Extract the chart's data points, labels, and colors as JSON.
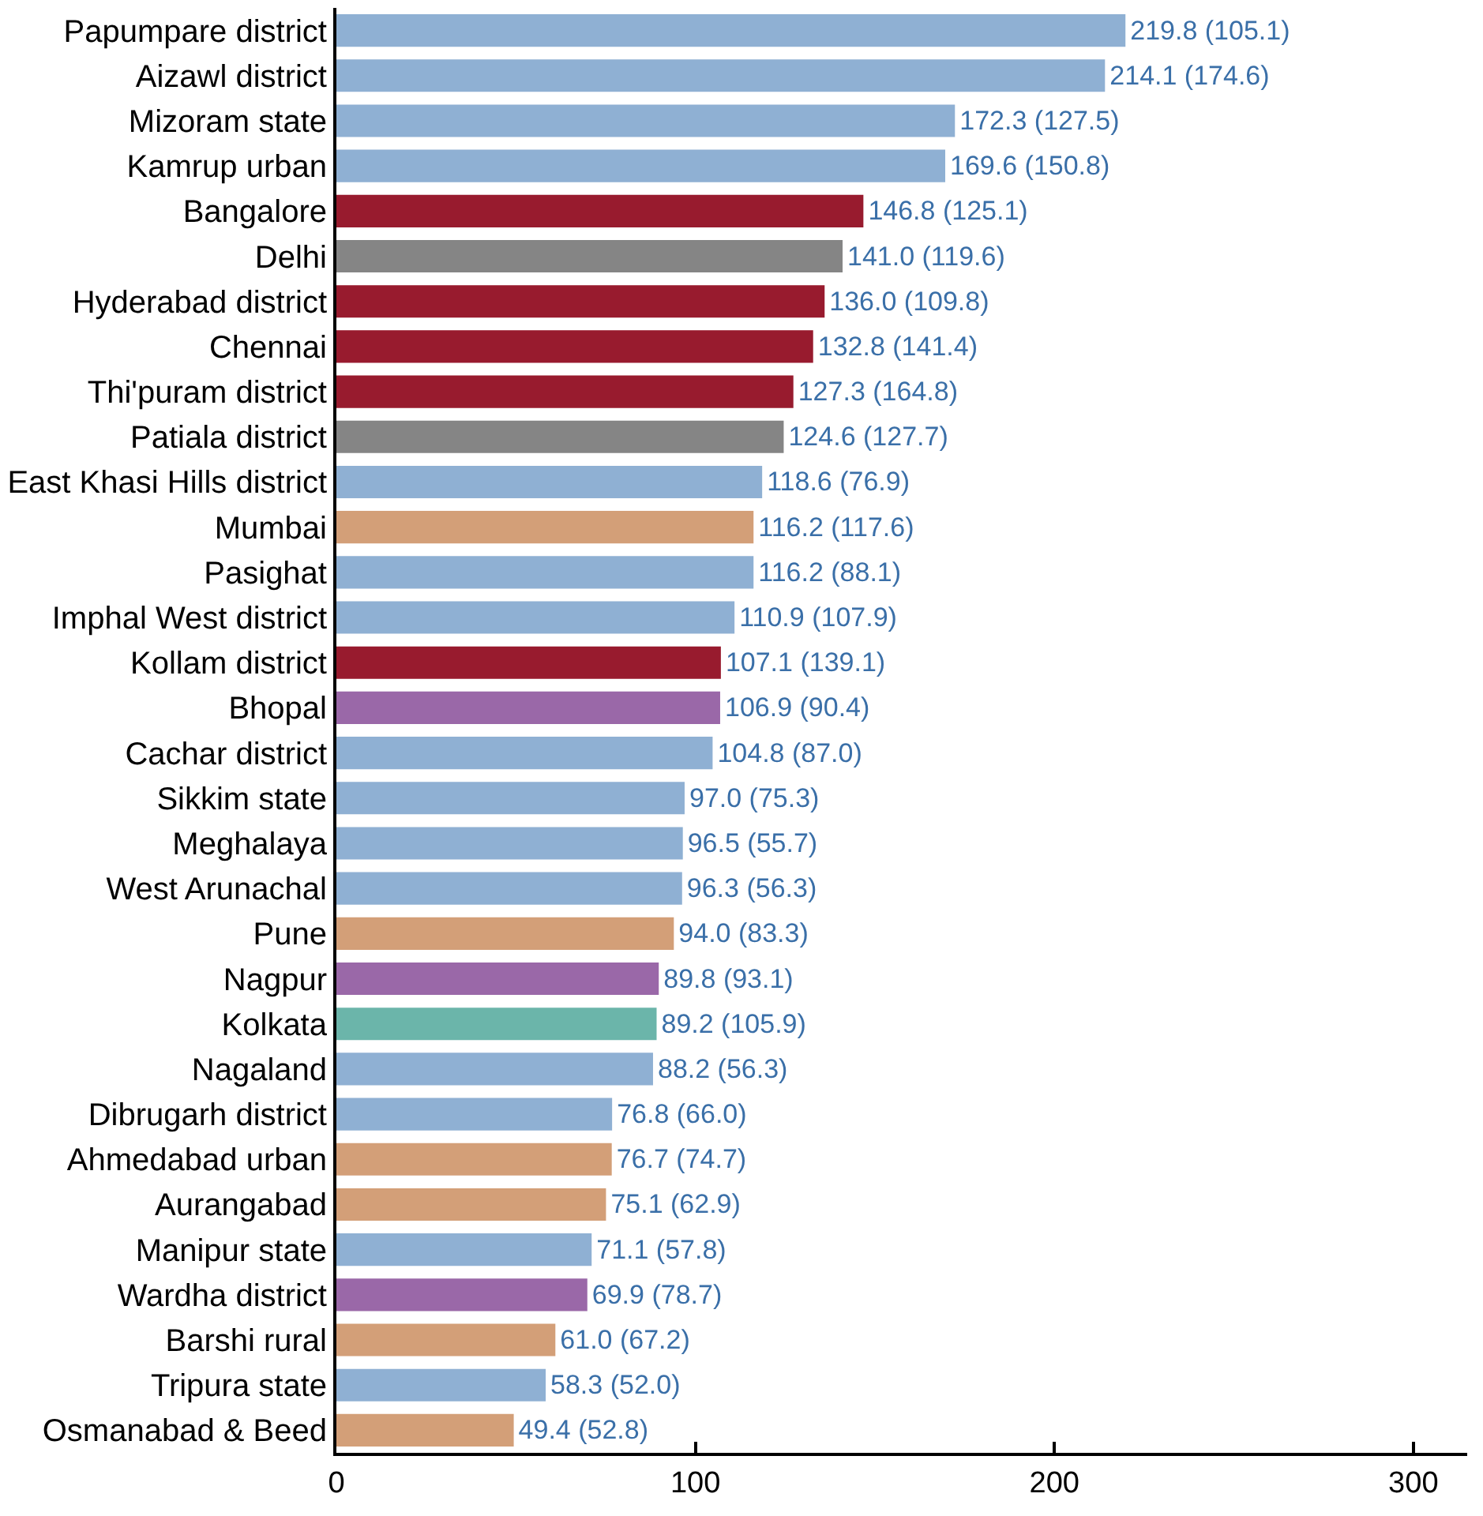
{
  "chart_data": {
    "type": "bar",
    "orientation": "horizontal",
    "categories": [
      "Papumpare district",
      "Aizawl district",
      "Mizoram state",
      "Kamrup urban",
      "Bangalore",
      "Delhi",
      "Hyderabad district",
      "Chennai",
      "Thi'puram district",
      "Patiala district",
      "East Khasi Hills district",
      "Mumbai",
      "Pasighat",
      "Imphal West district",
      "Kollam district",
      "Bhopal",
      "Cachar district",
      "Sikkim state",
      "Meghalaya",
      "West Arunachal",
      "Pune",
      "Nagpur",
      "Kolkata",
      "Nagaland",
      "Dibrugarh district",
      "Ahmedabad urban",
      "Aurangabad",
      "Manipur state",
      "Wardha district",
      "Barshi rural",
      "Tripura state",
      "Osmanabad & Beed"
    ],
    "values": [
      219.8,
      214.1,
      172.3,
      169.6,
      146.8,
      141.0,
      136.0,
      132.8,
      127.3,
      124.6,
      118.6,
      116.2,
      116.2,
      110.9,
      107.1,
      106.9,
      104.8,
      97.0,
      96.5,
      96.3,
      94.0,
      89.8,
      89.2,
      88.2,
      76.8,
      76.7,
      75.1,
      71.1,
      69.9,
      61.0,
      58.3,
      49.4
    ],
    "value_labels": [
      "219.8 (105.1)",
      "214.1 (174.6)",
      "172.3 (127.5)",
      "169.6 (150.8)",
      "146.8 (125.1)",
      "141.0 (119.6)",
      "136.0 (109.8)",
      "132.8 (141.4)",
      "127.3 (164.8)",
      "124.6 (127.7)",
      "118.6 (76.9)",
      "116.2 (117.6)",
      "116.2 (88.1)",
      "110.9 (107.9)",
      "107.1 (139.1)",
      "106.9 (90.4)",
      "104.8 (87.0)",
      "97.0 (75.3)",
      "96.5 (55.7)",
      "96.3 (56.3)",
      "94.0 (83.3)",
      "89.8 (93.1)",
      "89.2 (105.9)",
      "88.2 (56.3)",
      "76.8 (66.0)",
      "76.7 (74.7)",
      "75.1 (62.9)",
      "71.1 (57.8)",
      "69.9 (78.7)",
      "61.0 (67.2)",
      "58.3 (52.0)",
      "49.4 (52.8)"
    ],
    "colors": [
      "#8fb0d3",
      "#8fb0d3",
      "#8fb0d3",
      "#8fb0d3",
      "#981b2e",
      "#858585",
      "#981b2e",
      "#981b2e",
      "#981b2e",
      "#858585",
      "#8fb0d3",
      "#d39f78",
      "#8fb0d3",
      "#8fb0d3",
      "#981b2e",
      "#9a68a8",
      "#8fb0d3",
      "#8fb0d3",
      "#8fb0d3",
      "#8fb0d3",
      "#d39f78",
      "#9a68a8",
      "#6bb5aa",
      "#8fb0d3",
      "#8fb0d3",
      "#d39f78",
      "#d39f78",
      "#8fb0d3",
      "#9a68a8",
      "#d39f78",
      "#8fb0d3",
      "#d39f78"
    ],
    "xlim": [
      0,
      315
    ],
    "xticks": [
      0,
      100,
      200,
      300
    ]
  }
}
